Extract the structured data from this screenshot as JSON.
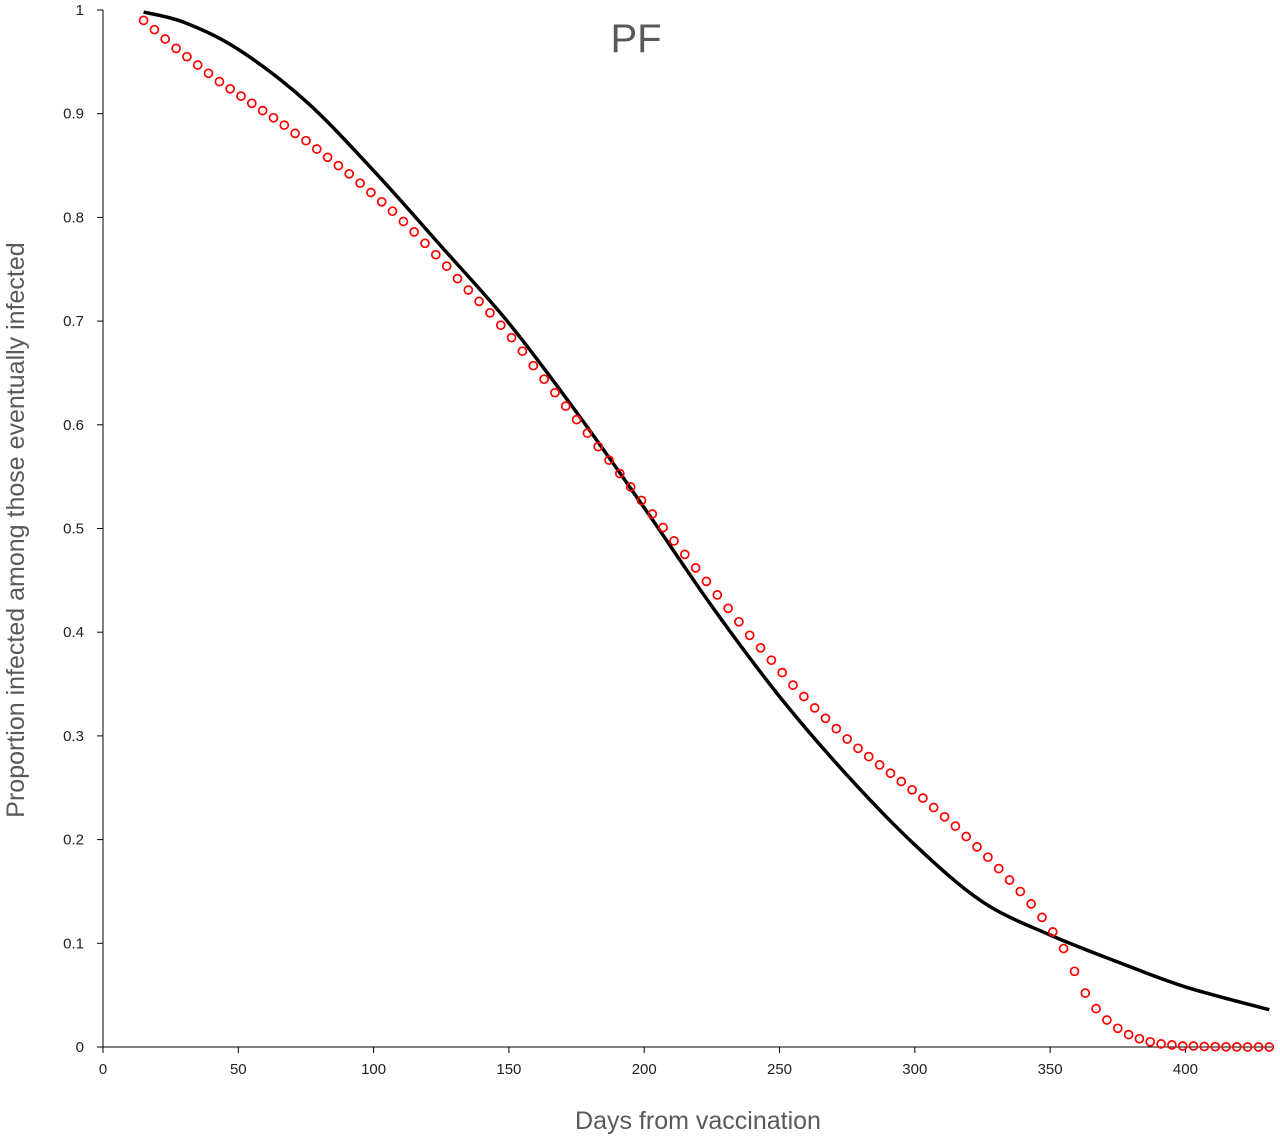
{
  "chart_data": {
    "type": "line",
    "title": "PF",
    "xlabel": "Days from vaccination",
    "ylabel": "Proportion infected among those eventually infected",
    "xlim": [
      0,
      432
    ],
    "ylim": [
      0,
      1
    ],
    "x_ticks": [
      0,
      50,
      100,
      150,
      200,
      250,
      300,
      350,
      400
    ],
    "y_ticks": [
      0,
      0.1,
      0.2,
      0.3,
      0.4,
      0.5,
      0.6,
      0.7,
      0.8,
      0.9,
      1
    ],
    "x_tick_labels": [
      "0",
      "50",
      "100",
      "150",
      "200",
      "250",
      "300",
      "350",
      "400"
    ],
    "y_tick_labels": [
      "0",
      "0.1",
      "0.2",
      "0.3",
      "0.4",
      "0.5",
      "0.6",
      "0.7",
      "0.8",
      "0.9",
      "1"
    ],
    "grid": false,
    "legend": "none",
    "series": [
      {
        "style": "line",
        "color": "#000000",
        "x": [
          15,
          30,
          50,
          75,
          100,
          125,
          150,
          175,
          200,
          225,
          250,
          275,
          300,
          325,
          350,
          375,
          400,
          431
        ],
        "y": [
          0.998,
          0.988,
          0.962,
          0.912,
          0.845,
          0.772,
          0.698,
          0.612,
          0.52,
          0.425,
          0.338,
          0.262,
          0.195,
          0.14,
          0.108,
          0.082,
          0.058,
          0.036
        ]
      },
      {
        "style": "markers",
        "marker": "open-circle",
        "color": "#ff0000",
        "x": [
          15,
          19,
          23,
          27,
          31,
          35,
          39,
          43,
          47,
          51,
          55,
          59,
          63,
          67,
          71,
          75,
          79,
          83,
          87,
          91,
          95,
          99,
          103,
          107,
          111,
          115,
          119,
          123,
          127,
          131,
          135,
          139,
          143,
          147,
          151,
          155,
          159,
          163,
          167,
          171,
          175,
          179,
          183,
          187,
          191,
          195,
          199,
          203,
          207,
          211,
          215,
          219,
          223,
          227,
          231,
          235,
          239,
          243,
          247,
          251,
          255,
          259,
          263,
          267,
          271,
          275,
          279,
          283,
          287,
          291,
          295,
          299,
          303,
          307,
          311,
          315,
          319,
          323,
          327,
          331,
          335,
          339,
          343,
          347,
          351,
          355,
          359,
          363,
          367,
          371,
          375,
          379,
          383,
          387,
          391,
          395,
          399,
          403,
          407,
          411,
          415,
          419,
          423,
          427,
          431
        ],
        "y": [
          0.99,
          0.981,
          0.972,
          0.963,
          0.955,
          0.947,
          0.939,
          0.931,
          0.924,
          0.917,
          0.91,
          0.903,
          0.896,
          0.889,
          0.881,
          0.874,
          0.866,
          0.858,
          0.85,
          0.842,
          0.833,
          0.824,
          0.815,
          0.806,
          0.796,
          0.786,
          0.775,
          0.764,
          0.753,
          0.741,
          0.73,
          0.719,
          0.708,
          0.696,
          0.684,
          0.671,
          0.657,
          0.644,
          0.631,
          0.618,
          0.605,
          0.592,
          0.579,
          0.566,
          0.553,
          0.54,
          0.527,
          0.514,
          0.501,
          0.488,
          0.475,
          0.462,
          0.449,
          0.436,
          0.423,
          0.41,
          0.397,
          0.385,
          0.373,
          0.361,
          0.349,
          0.338,
          0.327,
          0.317,
          0.307,
          0.297,
          0.288,
          0.28,
          0.272,
          0.264,
          0.256,
          0.248,
          0.24,
          0.231,
          0.222,
          0.213,
          0.203,
          0.193,
          0.183,
          0.172,
          0.161,
          0.15,
          0.138,
          0.125,
          0.111,
          0.095,
          0.073,
          0.052,
          0.037,
          0.026,
          0.018,
          0.012,
          0.008,
          0.005,
          0.003,
          0.002,
          0.001,
          0.001,
          0.0005,
          0.0003,
          0.0002,
          0.0001,
          0.0,
          0.0,
          0.0
        ]
      }
    ]
  }
}
